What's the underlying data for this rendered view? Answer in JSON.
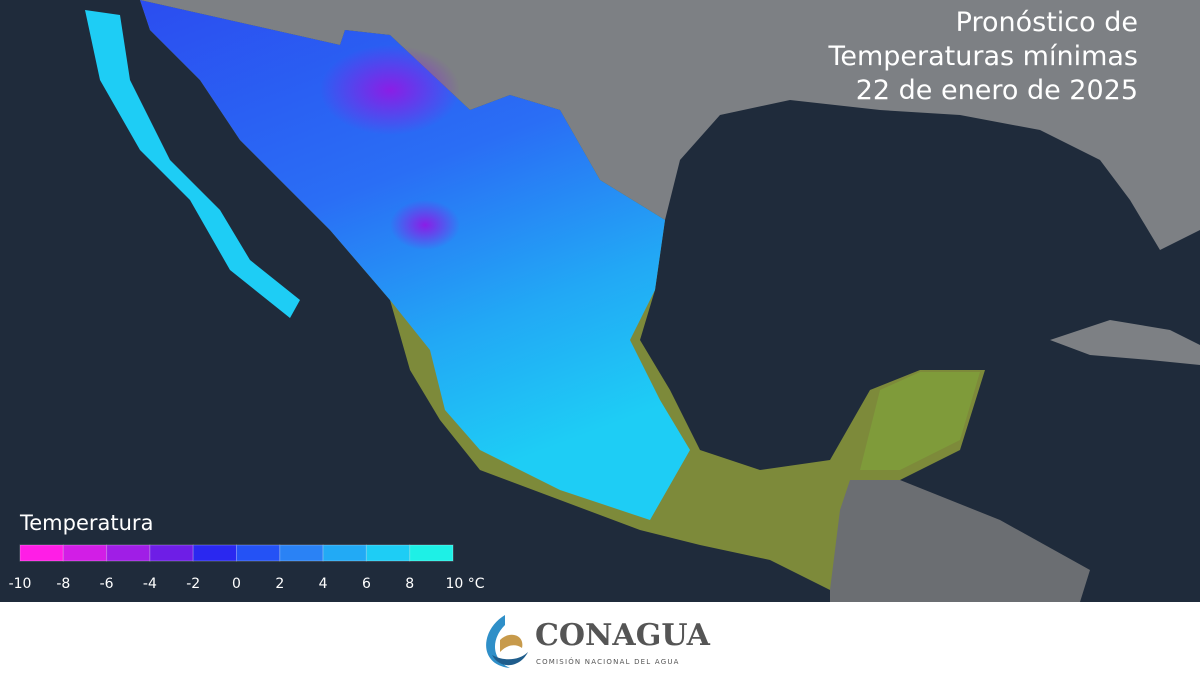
{
  "header": {
    "title_lines": [
      "Pronóstico de",
      "Temperaturas mínimas",
      "22 de enero de 2025"
    ]
  },
  "legend": {
    "title": "Temperatura",
    "ticks": [
      -10,
      -8,
      -6,
      -4,
      -2,
      0,
      2,
      4,
      6,
      8,
      {
        "value": 10,
        "label": "10 °C"
      }
    ],
    "colors": [
      "#ff1ee6",
      "#d21ee6",
      "#a01ee6",
      "#6e1ee6",
      "#2a28f0",
      "#2452f5",
      "#2a82f5",
      "#22aaf5",
      "#1ecdf5",
      "#1ef0e6"
    ]
  },
  "footer": {
    "logo_name": "CONAGUA",
    "logo_subtitle": "COMISIÓN NACIONAL DEL AGUA"
  }
}
